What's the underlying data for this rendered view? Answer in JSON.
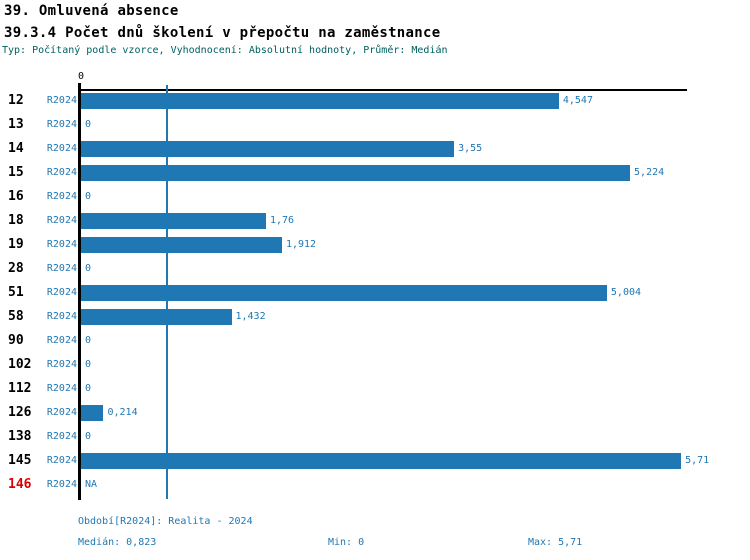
{
  "header": {
    "title1": "39. Omluvená absence",
    "title2": "39.3.4 Počet dnů školení v přepočtu na zaměstnance",
    "subtitle": "Typ: Počítaný podle vzorce, Vyhodnocení: Absolutní hodnoty, Průměr: Medián"
  },
  "axis": {
    "zero_label": "0"
  },
  "chart_data": {
    "type": "bar",
    "orientation": "horizontal",
    "series_label": "R2024",
    "categories": [
      "12",
      "13",
      "14",
      "15",
      "16",
      "18",
      "19",
      "28",
      "51",
      "58",
      "90",
      "102",
      "112",
      "126",
      "138",
      "145",
      "146"
    ],
    "values": [
      4.547,
      0,
      3.55,
      5.224,
      0,
      1.76,
      1.912,
      0,
      5.004,
      1.432,
      0,
      0,
      0,
      0.214,
      0,
      5.71,
      null
    ],
    "value_labels": [
      "4,547",
      "0",
      "3,55",
      "5,224",
      "0",
      "1,76",
      "1,912",
      "0",
      "5,004",
      "1,432",
      "0",
      "0",
      "0",
      "0,214",
      "0",
      "5,71",
      "NA"
    ],
    "highlight_category": "146",
    "xlim": [
      0,
      5.77
    ],
    "median": 0.823,
    "grid": false,
    "legend": false
  },
  "footer": {
    "period": "Období[R2024]: Realita - 2024",
    "median": "Medián: 0,823",
    "min": "Min: 0",
    "max": "Max: 5,71"
  },
  "colors": {
    "bar": "#1f77b4",
    "blue_text": "#1f77b4",
    "subtitle": "#006060",
    "highlight": "#dd0000",
    "axis": "#000000"
  }
}
